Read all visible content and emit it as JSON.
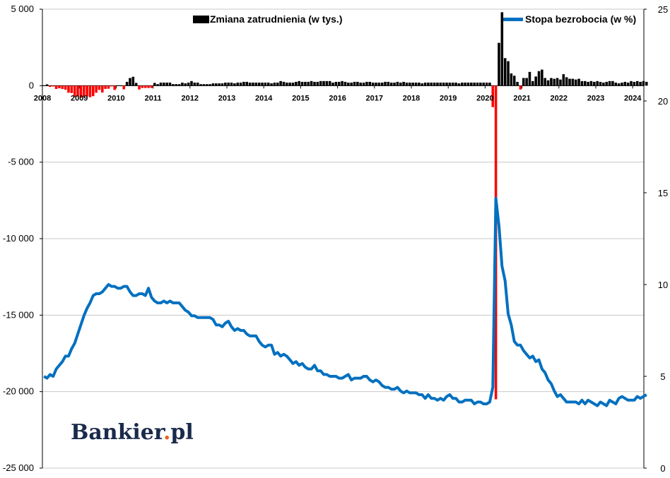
{
  "chart_data": {
    "type": "bar+line",
    "title": "",
    "left_axis": {
      "ylim": [
        -25000,
        5000
      ],
      "ticks": [
        5000,
        0,
        -5000,
        -10000,
        -15000,
        -20000,
        -25000
      ],
      "tick_labels": [
        "5 000",
        "0",
        "-5 000",
        "-10 000",
        "-15 000",
        "-20 000",
        "-25 000"
      ]
    },
    "right_axis": {
      "ylim": [
        0,
        25
      ],
      "ticks": [
        0,
        5,
        10,
        15,
        20,
        25
      ],
      "tick_labels": [
        "0",
        "5",
        "10",
        "15",
        "20",
        "25"
      ]
    },
    "x_axis": {
      "start": "2008-01",
      "end": "2024-05",
      "year_labels": [
        "2008",
        "2009",
        "2010",
        "2011",
        "2012",
        "2013",
        "2014",
        "2015",
        "2016",
        "2017",
        "2018",
        "2019",
        "2020",
        "2021",
        "2022",
        "2023",
        "2024"
      ]
    },
    "legend": [
      {
        "name": "Zmiana zatrudnienia (w tys.)",
        "color": "#000000",
        "marker": "square",
        "axis": "left",
        "position": "top-center"
      },
      {
        "name": "Stopa bezrobocia (w %)",
        "color": "#0070c0",
        "marker": "line",
        "axis": "right",
        "position": "top-right"
      }
    ],
    "colors": {
      "positive_bar": "#000000",
      "negative_bar": "#ff0000",
      "line": "#0070c0",
      "grid": "#c8c8c8"
    },
    "grid": true,
    "series": [
      {
        "name": "Zmiana zatrudnienia (w tys.)",
        "type": "bar",
        "axis": "left",
        "start": "2008-01",
        "frequency": "monthly",
        "values": [
          17,
          84,
          -83,
          -50,
          -215,
          -169,
          -213,
          -267,
          -460,
          -481,
          -729,
          -706,
          -784,
          -743,
          -705,
          -753,
          -685,
          -462,
          -277,
          -449,
          -211,
          -199,
          -12,
          -279,
          22,
          18,
          -240,
          250,
          500,
          580,
          180,
          -250,
          -150,
          -150,
          -150,
          -150,
          180,
          100,
          200,
          200,
          200,
          200,
          100,
          100,
          100,
          200,
          150,
          200,
          300,
          200,
          200,
          100,
          100,
          100,
          100,
          150,
          150,
          150,
          150,
          200,
          200,
          200,
          150,
          200,
          200,
          250,
          250,
          200,
          200,
          200,
          200,
          200,
          200,
          200,
          150,
          200,
          200,
          300,
          250,
          200,
          200,
          200,
          250,
          300,
          250,
          250,
          250,
          300,
          250,
          250,
          300,
          300,
          300,
          300,
          200,
          250,
          250,
          300,
          250,
          200,
          200,
          250,
          250,
          200,
          200,
          250,
          250,
          200,
          200,
          200,
          200,
          250,
          250,
          200,
          200,
          250,
          200,
          250,
          200,
          200,
          200,
          200,
          200,
          150,
          200,
          200,
          200,
          200,
          200,
          200,
          200,
          200,
          200,
          200,
          200,
          150,
          200,
          200,
          200,
          200,
          200,
          200,
          200,
          200,
          200,
          200,
          -1400,
          -20500,
          2800,
          4800,
          1800,
          1600,
          800,
          650,
          250,
          -250,
          500,
          500,
          900,
          300,
          600,
          950,
          1050,
          500,
          350,
          500,
          450,
          500,
          400,
          750,
          550,
          450,
          450,
          400,
          450,
          300,
          300,
          250,
          300,
          250,
          300,
          250,
          200,
          250,
          300,
          300,
          200,
          150,
          200,
          250,
          200,
          300,
          250,
          300,
          250,
          300,
          250
        ]
      },
      {
        "name": "Stopa bezrobocia (w %)",
        "type": "line",
        "axis": "right",
        "start": "2008-01",
        "frequency": "monthly",
        "values": [
          5.0,
          4.9,
          5.1,
          5.0,
          5.4,
          5.6,
          5.8,
          6.1,
          6.1,
          6.5,
          6.8,
          7.3,
          7.8,
          8.3,
          8.7,
          9.0,
          9.4,
          9.5,
          9.5,
          9.6,
          9.8,
          10.0,
          9.9,
          9.9,
          9.8,
          9.8,
          9.9,
          9.9,
          9.6,
          9.4,
          9.4,
          9.5,
          9.5,
          9.4,
          9.8,
          9.3,
          9.1,
          9.0,
          9.0,
          9.1,
          9.0,
          9.1,
          9.0,
          9.0,
          9.0,
          8.8,
          8.6,
          8.5,
          8.3,
          8.3,
          8.2,
          8.2,
          8.2,
          8.2,
          8.2,
          8.1,
          7.8,
          7.8,
          7.7,
          7.9,
          8.0,
          7.7,
          7.5,
          7.6,
          7.5,
          7.5,
          7.3,
          7.2,
          7.2,
          7.2,
          6.9,
          6.7,
          6.6,
          6.7,
          6.7,
          6.2,
          6.3,
          6.1,
          6.2,
          6.1,
          5.9,
          5.7,
          5.8,
          5.6,
          5.7,
          5.5,
          5.4,
          5.4,
          5.6,
          5.3,
          5.3,
          5.1,
          5.1,
          5.0,
          5.0,
          5.0,
          4.9,
          4.9,
          5.0,
          5.1,
          4.8,
          4.9,
          4.9,
          4.9,
          5.0,
          5.0,
          4.8,
          4.7,
          4.8,
          4.7,
          4.5,
          4.4,
          4.4,
          4.3,
          4.3,
          4.4,
          4.2,
          4.1,
          4.2,
          4.1,
          4.1,
          4.1,
          4.0,
          4.0,
          3.8,
          4.0,
          3.8,
          3.8,
          3.7,
          3.8,
          3.7,
          3.9,
          4.0,
          3.8,
          3.8,
          3.6,
          3.6,
          3.7,
          3.7,
          3.7,
          3.5,
          3.6,
          3.6,
          3.5,
          3.5,
          3.6,
          4.4,
          14.7,
          13.2,
          11.0,
          10.2,
          8.4,
          7.8,
          6.9,
          6.7,
          6.7,
          6.4,
          6.2,
          6.0,
          6.1,
          5.8,
          5.9,
          5.4,
          5.2,
          4.8,
          4.6,
          4.2,
          3.9,
          4.0,
          3.8,
          3.6,
          3.6,
          3.6,
          3.6,
          3.5,
          3.7,
          3.5,
          3.7,
          3.6,
          3.5,
          3.4,
          3.6,
          3.5,
          3.4,
          3.7,
          3.6,
          3.5,
          3.8,
          3.9,
          3.8,
          3.7,
          3.7,
          3.7,
          3.9,
          3.8,
          3.9,
          4.0
        ]
      }
    ]
  },
  "brand": {
    "logo_text_main": "Bankier",
    "logo_text_dot": ".",
    "logo_text_tld": "pl",
    "logo_dot_color": "#e8641e"
  }
}
